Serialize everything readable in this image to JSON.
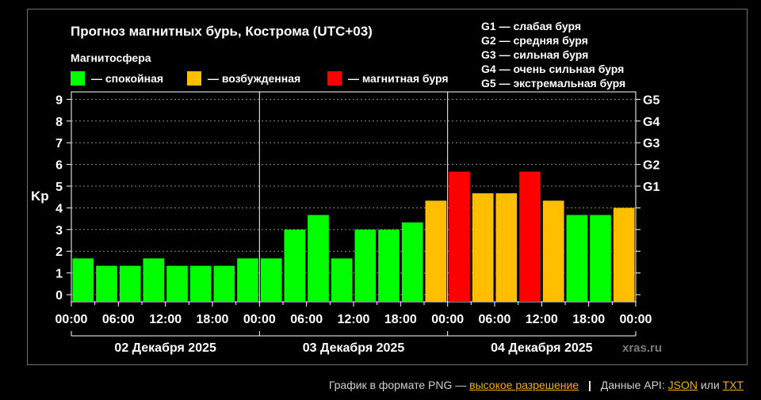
{
  "chart_data": {
    "type": "bar",
    "title": "Прогноз магнитных бурь, Кострома (UTC+03)",
    "legend_title": "Магнитосфера",
    "legend": [
      {
        "key": "calm",
        "label": "— спокойная",
        "color": "#00ff00"
      },
      {
        "key": "excited",
        "label": "— возбужденная",
        "color": "#ffbf00"
      },
      {
        "key": "storm",
        "label": "— магнитная буря",
        "color": "#ff0000"
      }
    ],
    "storm_scale": [
      "G1 — слабая буря",
      "G2 — средняя буря",
      "G3 — сильная буря",
      "G4 — очень сильная буря",
      "G5 — экстремальная буря"
    ],
    "ylabel": "Kp",
    "ylim": [
      0,
      9
    ],
    "y_ticks": [
      "0",
      "1",
      "2",
      "3",
      "4",
      "5",
      "6",
      "7",
      "8",
      "9"
    ],
    "right_ticks": [
      {
        "value": 5,
        "label": "G1"
      },
      {
        "value": 6,
        "label": "G2"
      },
      {
        "value": 7,
        "label": "G3"
      },
      {
        "value": 8,
        "label": "G4"
      },
      {
        "value": 9,
        "label": "G5"
      }
    ],
    "x_tick_labels": [
      "00:00",
      "06:00",
      "12:00",
      "18:00",
      "00:00",
      "06:00",
      "12:00",
      "18:00",
      "00:00",
      "06:00",
      "12:00",
      "18:00",
      "00:00"
    ],
    "days": [
      "02 Декабря 2025",
      "03 Декабря 2025",
      "04 Декабря 2025"
    ],
    "values": [
      1.67,
      1.33,
      1.33,
      1.67,
      1.33,
      1.33,
      1.33,
      1.67,
      1.67,
      3.0,
      3.67,
      1.67,
      3.0,
      3.0,
      3.33,
      4.33,
      5.67,
      4.67,
      4.67,
      5.67,
      4.33,
      3.67,
      3.67,
      4.0
    ],
    "watermark": "xras.ru",
    "grid": true
  },
  "footer": {
    "prefix": "График в формате PNG —",
    "hires_link": "высокое разрешение",
    "sep": "|",
    "api_label": "Данные API:",
    "json_link": "JSON",
    "or": "или",
    "txt_link": "TXT"
  }
}
